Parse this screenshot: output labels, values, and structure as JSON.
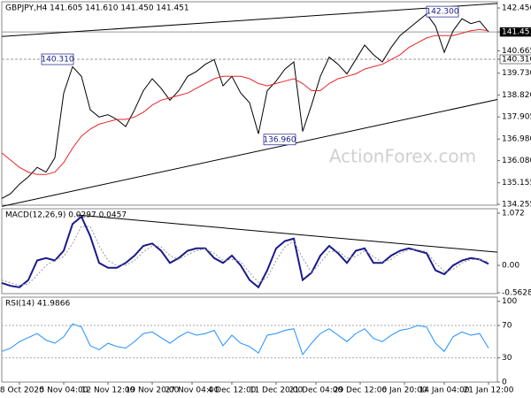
{
  "chart_data": [
    {
      "type": "line",
      "title": "GBPJPY,H4 141.605 141.610 141.450 141.451",
      "x": [
        0,
        2,
        4,
        6,
        8,
        10,
        12,
        14,
        16,
        18,
        20,
        22,
        24,
        26,
        28,
        30,
        32,
        34,
        36,
        38,
        40,
        42,
        44,
        46,
        48,
        50,
        52,
        54,
        56,
        58,
        60,
        62,
        64,
        66,
        68,
        70,
        72,
        74,
        76,
        78,
        80,
        82,
        84,
        86,
        88,
        90,
        92,
        94,
        96,
        98,
        100,
        102,
        104,
        106,
        108,
        110
      ],
      "xlim": [
        0,
        112
      ],
      "ylim": [
        134.22,
        142.71
      ],
      "yticks": [
        {
          "value": 142.45,
          "label": "142.450"
        },
        141.451,
        140.665,
        {
          "value": 140.31,
          "label": "140.310"
        },
        {
          "value": 139.73,
          "label": "139.730"
        },
        {
          "value": 138.82,
          "label": "138.820"
        },
        137.905,
        {
          "value": 136.98,
          "label": "136.980"
        },
        {
          "value": 136.08,
          "label": "136.080"
        },
        135.155,
        134.255
      ],
      "hlines": [
        141.451,
        140.31
      ],
      "series": [
        {
          "color": "#000000",
          "values": [
            134.5,
            134.7,
            135.1,
            135.4,
            135.8,
            135.6,
            136.2,
            138.9,
            140.0,
            139.6,
            138.2,
            137.9,
            138.0,
            137.8,
            137.5,
            138.2,
            139.0,
            139.5,
            139.1,
            138.6,
            139.0,
            139.6,
            139.8,
            140.1,
            140.3,
            139.2,
            139.6,
            138.9,
            138.5,
            137.2,
            139.0,
            139.4,
            139.9,
            140.2,
            137.3,
            138.4,
            139.6,
            140.4,
            140.1,
            139.7,
            140.3,
            140.9,
            140.5,
            140.2,
            140.8,
            141.3,
            141.6,
            141.9,
            142.2,
            141.7,
            140.6,
            141.5,
            142.0,
            141.8,
            141.9,
            141.45
          ]
        },
        {
          "color": "#e8262a",
          "values": [
            136.4,
            136.1,
            135.8,
            135.6,
            135.5,
            135.5,
            135.6,
            136.0,
            136.6,
            137.1,
            137.4,
            137.6,
            137.7,
            137.8,
            137.8,
            137.9,
            138.1,
            138.4,
            138.6,
            138.7,
            138.8,
            138.9,
            139.1,
            139.3,
            139.5,
            139.6,
            139.6,
            139.6,
            139.5,
            139.3,
            139.2,
            139.3,
            139.4,
            139.5,
            139.3,
            139.0,
            139.0,
            139.3,
            139.5,
            139.6,
            139.7,
            139.9,
            140.0,
            140.1,
            140.3,
            140.5,
            140.8,
            141.0,
            141.2,
            141.3,
            141.3,
            141.3,
            141.4,
            141.5,
            141.55,
            141.5
          ]
        }
      ],
      "trendlines": [
        {
          "x": [
            0,
            112
          ],
          "y": [
            141.26,
            142.64
          ]
        },
        {
          "x": [
            0,
            112
          ],
          "y": [
            134.17,
            138.63
          ]
        }
      ],
      "annotations": [
        {
          "label": "140.310",
          "x": 12.6,
          "y": 140.31
        },
        {
          "label": "136.960",
          "x": 62.8,
          "y": 136.96
        },
        {
          "label": "142.300",
          "x": 99.6,
          "y": 142.3
        }
      ],
      "watermark": "ActionForex.com"
    },
    {
      "type": "line",
      "title": "MACD(12,26,9) 0.0297 0.0457",
      "x": [
        0,
        2,
        4,
        6,
        8,
        10,
        12,
        14,
        16,
        18,
        20,
        22,
        24,
        26,
        28,
        30,
        32,
        34,
        36,
        38,
        40,
        42,
        44,
        46,
        48,
        50,
        52,
        54,
        56,
        58,
        60,
        62,
        64,
        66,
        68,
        70,
        72,
        74,
        76,
        78,
        80,
        82,
        84,
        86,
        88,
        90,
        92,
        94,
        96,
        98,
        100,
        102,
        104,
        106,
        108,
        110
      ],
      "xlim": [
        0,
        112
      ],
      "ylim": [
        -0.58,
        1.163
      ],
      "yticks": [
        1.072,
        {
          "value": 0,
          "label": "0.00"
        },
        -0.5628
      ],
      "series": [
        {
          "color": "#1a1a8c",
          "values": [
            -0.36,
            -0.42,
            -0.45,
            -0.3,
            0.1,
            0.15,
            0.1,
            0.3,
            0.85,
            1.0,
            0.6,
            0.05,
            -0.05,
            -0.05,
            0.05,
            0.2,
            0.4,
            0.45,
            0.3,
            0.05,
            0.15,
            0.3,
            0.35,
            0.35,
            0.15,
            0.05,
            0.2,
            0.0,
            -0.3,
            -0.45,
            -0.1,
            0.35,
            0.5,
            0.55,
            -0.3,
            -0.15,
            0.2,
            0.4,
            0.25,
            0.05,
            0.3,
            0.35,
            0.05,
            0.05,
            0.2,
            0.3,
            0.35,
            0.3,
            0.25,
            -0.1,
            -0.18,
            0.0,
            0.1,
            0.15,
            0.12,
            0.03
          ]
        },
        {
          "color": "#999999",
          "dashed": true,
          "values": [
            -0.3,
            -0.36,
            -0.41,
            -0.38,
            -0.2,
            0.0,
            0.1,
            0.18,
            0.45,
            0.8,
            0.8,
            0.4,
            0.1,
            0.0,
            0.0,
            0.1,
            0.28,
            0.4,
            0.38,
            0.2,
            0.12,
            0.22,
            0.3,
            0.34,
            0.25,
            0.1,
            0.12,
            0.08,
            -0.15,
            -0.35,
            -0.25,
            0.1,
            0.38,
            0.5,
            0.15,
            -0.15,
            0.05,
            0.28,
            0.3,
            0.15,
            0.18,
            0.3,
            0.18,
            0.06,
            0.12,
            0.25,
            0.32,
            0.32,
            0.28,
            0.05,
            -0.12,
            -0.08,
            0.05,
            0.12,
            0.12,
            0.07
          ]
        }
      ],
      "trendlines": [
        {
          "x": [
            17,
            112
          ],
          "y": [
            1.036,
            0.27
          ]
        }
      ]
    },
    {
      "type": "line",
      "title": "RSI(14) 41.9866",
      "x": [
        0,
        2,
        4,
        6,
        8,
        10,
        12,
        14,
        16,
        18,
        20,
        22,
        24,
        26,
        28,
        30,
        32,
        34,
        36,
        38,
        40,
        42,
        44,
        46,
        48,
        50,
        52,
        54,
        56,
        58,
        60,
        62,
        64,
        66,
        68,
        70,
        72,
        74,
        76,
        78,
        80,
        82,
        84,
        86,
        88,
        90,
        92,
        94,
        96,
        98,
        100,
        102,
        104,
        106,
        108,
        110
      ],
      "xlim": [
        0,
        112
      ],
      "ylim": [
        0,
        105
      ],
      "yticks": [
        100,
        70,
        30,
        0
      ],
      "levels": [
        70,
        30
      ],
      "xticks": [
        {
          "value": 4,
          "label": "28 Oct 2020"
        },
        {
          "value": 14,
          "label": "5 Nov 04:00"
        },
        {
          "value": 24,
          "label": "12 Nov 12:00"
        },
        {
          "value": 34,
          "label": "19 Nov 20:00"
        },
        {
          "value": 43,
          "label": "27 Nov 04:00"
        },
        {
          "value": 52,
          "label": "4 Dec 12:00"
        },
        {
          "value": 62,
          "label": "11 Dec 20:00"
        },
        {
          "value": 71,
          "label": "21 Dec 04:00"
        },
        {
          "value": 81,
          "label": "29 Dec 12:00"
        },
        {
          "value": 91,
          "label": "6 Jan 20:00"
        },
        {
          "value": 100,
          "label": "14 Jan 04:00"
        },
        {
          "value": 110,
          "label": "21 Jan 12:00"
        }
      ],
      "series": [
        {
          "color": "#1e90ff",
          "values": [
            38,
            42,
            50,
            55,
            60,
            52,
            48,
            56,
            72,
            68,
            45,
            40,
            48,
            44,
            42,
            50,
            60,
            62,
            55,
            48,
            56,
            62,
            58,
            60,
            64,
            45,
            58,
            48,
            44,
            36,
            58,
            60,
            64,
            66,
            34,
            48,
            60,
            66,
            58,
            50,
            60,
            66,
            54,
            50,
            58,
            64,
            66,
            70,
            68,
            48,
            38,
            56,
            62,
            58,
            60,
            42
          ]
        }
      ]
    }
  ]
}
